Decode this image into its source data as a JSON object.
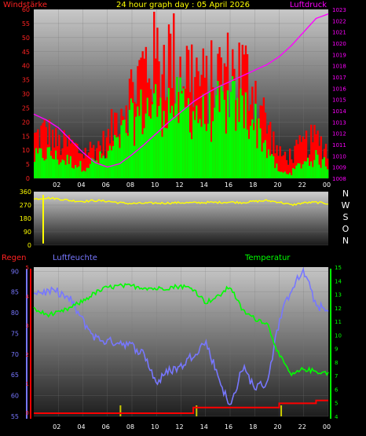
{
  "chart_data": [
    {
      "type": "bar",
      "title": "24 hour graph day : 05 April 2026",
      "left_label": "Windstärke",
      "right_label": "Luftdruck",
      "x_ticks": [
        "02",
        "04",
        "06",
        "08",
        "10",
        "12",
        "14",
        "16",
        "18",
        "20",
        "22",
        "00"
      ],
      "ylim_left": [
        0,
        60
      ],
      "y_ticks_left": [
        "0",
        "5",
        "10",
        "15",
        "20",
        "25",
        "30",
        "35",
        "40",
        "45",
        "50",
        "55",
        "60"
      ],
      "ylim_right": [
        1008,
        1023
      ],
      "y_ticks_right": [
        "1008",
        "1009",
        "1010",
        "1011",
        "1012",
        "1013",
        "1014",
        "1015",
        "1016",
        "1017",
        "1018",
        "1019",
        "1020",
        "1021",
        "1022",
        "1023"
      ],
      "series": [
        {
          "name": "Windstärke",
          "color": "#ff0000",
          "x_hours": [
            0,
            1,
            2,
            3,
            4,
            5,
            6,
            7,
            8,
            9,
            10,
            11,
            12,
            13,
            14,
            15,
            16,
            17,
            18,
            19,
            20,
            21,
            22,
            23,
            24
          ],
          "values": [
            14,
            17,
            12,
            12,
            9,
            11,
            13,
            25,
            31,
            40,
            42,
            44,
            40,
            38,
            32,
            37,
            38,
            38,
            32,
            19,
            8,
            8,
            12,
            14,
            10
          ]
        },
        {
          "name": "Windstärke",
          "color": "#00ff00",
          "x_hours": [
            0,
            1,
            2,
            3,
            4,
            5,
            6,
            7,
            8,
            9,
            10,
            11,
            12,
            13,
            14,
            15,
            16,
            17,
            18,
            19,
            20,
            21,
            22,
            23,
            24
          ],
          "values": [
            7,
            9,
            7,
            6,
            4,
            6,
            8,
            14,
            20,
            24,
            26,
            27,
            25,
            24,
            21,
            24,
            26,
            25,
            20,
            11,
            2,
            2,
            6,
            7,
            5
          ]
        },
        {
          "name": "Luftdruck",
          "color": "#ff00ff",
          "x_hours": [
            0,
            1,
            2,
            3,
            4,
            5,
            6,
            7,
            8,
            9,
            10,
            11,
            12,
            13,
            14,
            15,
            16,
            17,
            18,
            19,
            20,
            21,
            22,
            23,
            24
          ],
          "values": [
            1013.7,
            1013.2,
            1012.5,
            1011.4,
            1010.3,
            1009.4,
            1009.0,
            1009.3,
            1010.1,
            1011.0,
            1012.0,
            1013.0,
            1013.9,
            1014.8,
            1015.5,
            1016.1,
            1016.6,
            1017.1,
            1017.6,
            1018.1,
            1018.8,
            1019.8,
            1021.0,
            1022.2,
            1022.6
          ]
        }
      ]
    },
    {
      "type": "line",
      "right_labels": [
        "N",
        "W",
        "S",
        "O",
        "N"
      ],
      "ylim": [
        0,
        360
      ],
      "y_ticks": [
        "0",
        "90",
        "180",
        "270",
        "360"
      ],
      "x_hours": [
        0,
        1,
        2,
        3,
        4,
        5,
        6,
        7,
        8,
        9,
        10,
        11,
        12,
        13,
        14,
        15,
        16,
        17,
        18,
        19,
        20,
        21,
        22,
        23,
        24
      ],
      "values": [
        310,
        318,
        312,
        300,
        295,
        300,
        296,
        285,
        280,
        282,
        283,
        284,
        286,
        285,
        287,
        288,
        290,
        287,
        295,
        300,
        290,
        270,
        285,
        288,
        280
      ],
      "color": "#ffff00"
    },
    {
      "type": "line",
      "left_label": "Regen",
      "middle_label": "Luftfeuchte",
      "right_label": "Temperatur",
      "x_ticks": [
        "02",
        "04",
        "06",
        "08",
        "10",
        "12",
        "14",
        "16",
        "18",
        "20",
        "22",
        "00"
      ],
      "ylim_humidity": [
        55,
        91
      ],
      "y_ticks_humidity": [
        "55",
        "60",
        "65",
        "70",
        "75",
        "80",
        "85",
        "90"
      ],
      "ylim_temperature": [
        4,
        15
      ],
      "y_ticks_temperature": [
        "4",
        "5",
        "6",
        "7",
        "8",
        "9",
        "10",
        "11",
        "12",
        "13",
        "14",
        "15"
      ],
      "y_ticks_rain": [
        "0",
        "1",
        "2",
        "3",
        "4",
        "5"
      ],
      "series": [
        {
          "name": "Luftfeuchte",
          "color": "#7777ff",
          "x_hours": [
            0,
            1,
            2,
            3,
            4,
            5,
            6,
            7,
            8,
            9,
            10,
            11,
            12,
            13,
            14,
            15,
            16,
            17,
            18,
            19,
            20,
            21,
            22,
            23,
            24
          ],
          "values": [
            85,
            85,
            85,
            83,
            78,
            74,
            73,
            73,
            72,
            70,
            63,
            66,
            67,
            70,
            73,
            65,
            57,
            67,
            62,
            63,
            78,
            86,
            90,
            82,
            80
          ]
        },
        {
          "name": "Temperatur",
          "color": "#00ff00",
          "x_hours": [
            0,
            1,
            2,
            3,
            4,
            5,
            6,
            7,
            8,
            9,
            10,
            11,
            12,
            13,
            14,
            15,
            16,
            17,
            18,
            19,
            20,
            21,
            22,
            23,
            24
          ],
          "values": [
            11.9,
            11.5,
            11.6,
            12.0,
            12.5,
            13.1,
            13.5,
            13.6,
            13.6,
            13.5,
            13.4,
            13.5,
            13.6,
            13.4,
            12.4,
            12.8,
            13.6,
            11.8,
            11.2,
            10.9,
            8.5,
            7.0,
            7.5,
            7.3,
            7.2
          ]
        },
        {
          "name": "Regen",
          "color": "#ff0000",
          "x_hours": [
            0,
            1,
            2,
            3,
            4,
            5,
            6,
            7,
            8,
            9,
            10,
            11,
            12,
            13,
            14,
            15,
            16,
            17,
            18,
            19,
            20,
            21,
            22,
            23,
            24
          ],
          "values": [
            0,
            0,
            0,
            0,
            0,
            0,
            0,
            0,
            0,
            0,
            0,
            0,
            0,
            0.4,
            0.4,
            0.4,
            0.4,
            0.4,
            0.4,
            0.4,
            0.7,
            0.7,
            0.7,
            0.9,
            0.9
          ]
        }
      ]
    }
  ]
}
